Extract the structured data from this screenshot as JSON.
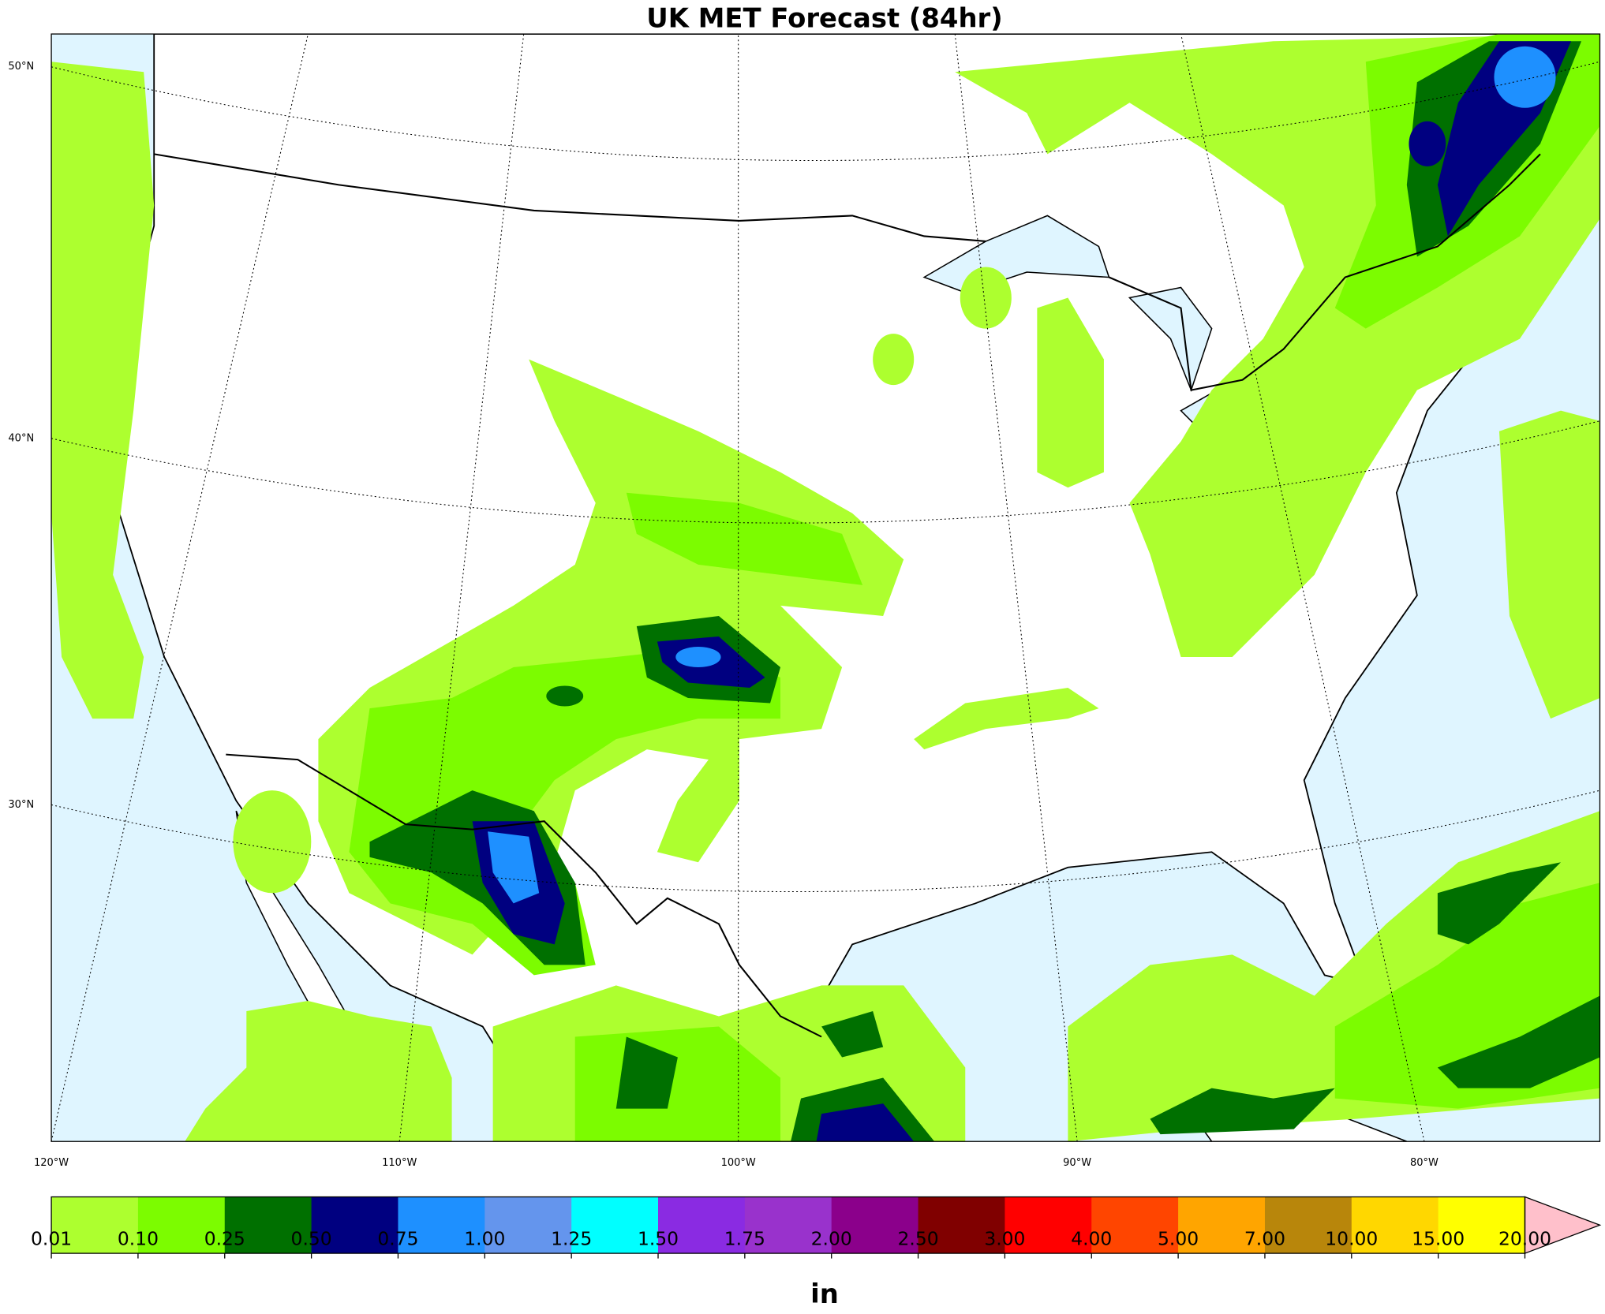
{
  "title": "UK MET Forecast (84hr)",
  "map": {
    "lat_labels": [
      "50°N",
      "40°N",
      "30°N"
    ],
    "lon_labels": [
      "120°W",
      "110°W",
      "100°W",
      "90°W",
      "80°W"
    ]
  },
  "colorbar": {
    "levels": [
      "0.01",
      "0.10",
      "0.25",
      "0.50",
      "0.75",
      "1.00",
      "1.25",
      "1.50",
      "1.75",
      "2.00",
      "2.50",
      "3.00",
      "4.00",
      "5.00",
      "7.00",
      "10.00",
      "15.00",
      "20.00"
    ],
    "colors": [
      "#adff2f",
      "#7cfc00",
      "#007000",
      "#000080",
      "#1e90ff",
      "#6495ed",
      "#00ffff",
      "#8a2be2",
      "#9932cc",
      "#8b008b",
      "#800000",
      "#ff0000",
      "#ff4500",
      "#ffa500",
      "#b8860b",
      "#ffd700",
      "#ffff00"
    ],
    "extend_color": "#ffc0cb",
    "unit": "in"
  }
}
